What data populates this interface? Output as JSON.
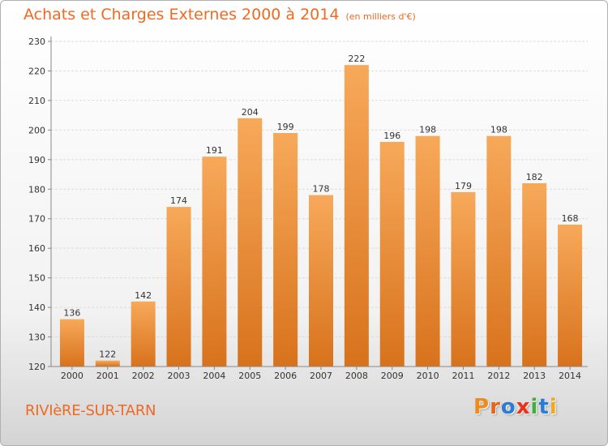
{
  "header": {
    "title": "Achats et Charges Externes 2000 à 2014",
    "subtitle": "(en milliers d'€)"
  },
  "footer": {
    "commune": "RIVIèRE-SUR-TARN",
    "logo_text": "Proxiti",
    "logo_colors": [
      "#f08a1c",
      "#e8641a",
      "#2b7bd4",
      "#e8331a",
      "#3fae3a",
      "#2b7bd4",
      "#f0a81c"
    ]
  },
  "colors": {
    "bar_light": "#f7a95a",
    "bar_dark": "#d8721c",
    "accent": "#ee6a23"
  },
  "chart_data": {
    "type": "bar",
    "title": "Achats et Charges Externes 2000 à 2014",
    "subtitle": "(en milliers d'€)",
    "categories": [
      "2000",
      "2001",
      "2002",
      "2003",
      "2004",
      "2005",
      "2006",
      "2007",
      "2008",
      "2009",
      "2010",
      "2011",
      "2012",
      "2013",
      "2014"
    ],
    "values": [
      136,
      122,
      142,
      174,
      191,
      204,
      199,
      178,
      222,
      196,
      198,
      179,
      198,
      182,
      168
    ],
    "ylim": [
      120,
      230
    ],
    "yticks": [
      120,
      130,
      140,
      150,
      160,
      170,
      180,
      190,
      200,
      210,
      220,
      230
    ],
    "grid": true,
    "xlabel": "",
    "ylabel": ""
  }
}
